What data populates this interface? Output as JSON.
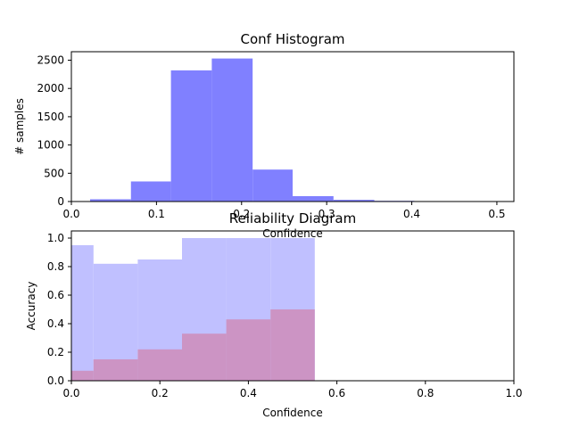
{
  "chart_data": [
    {
      "type": "bar",
      "title": "Conf Histogram",
      "xlabel": "Confidence",
      "ylabel": "# samples",
      "xlim": [
        0.0,
        0.52
      ],
      "ylim": [
        0,
        2650
      ],
      "xticks": [
        "0.0",
        "0.1",
        "0.2",
        "0.3",
        "0.4",
        "0.5"
      ],
      "yticks": [
        "0",
        "500",
        "1000",
        "1500",
        "2000",
        "2500"
      ],
      "bin_edges": [
        0.022,
        0.07,
        0.117,
        0.165,
        0.213,
        0.26,
        0.308,
        0.356,
        0.403,
        0.451,
        0.498
      ],
      "values": [
        40,
        355,
        2320,
        2530,
        565,
        95,
        30,
        12,
        6,
        4
      ],
      "color": "#8080ff",
      "grid": false
    },
    {
      "type": "bar",
      "title": "Reliability Diagram",
      "xlabel": "Confidence",
      "ylabel": "Accuracy",
      "xlim": [
        0.0,
        1.0
      ],
      "ylim": [
        0.0,
        1.05
      ],
      "xticks": [
        "0.0",
        "0.2",
        "0.4",
        "0.6",
        "0.8",
        "1.0"
      ],
      "yticks": [
        "0.0",
        "0.2",
        "0.4",
        "0.6",
        "0.8",
        "1.0"
      ],
      "bin_edges": [
        0.0,
        0.05,
        0.15,
        0.25,
        0.35,
        0.45,
        0.55
      ],
      "series": [
        {
          "values": [
            0.95,
            0.82,
            0.85,
            1.0,
            1.0,
            1.0
          ],
          "color": "#c0c0ff"
        },
        {
          "values": [
            0.07,
            0.15,
            0.22,
            0.33,
            0.43,
            0.5
          ],
          "color": "#cc94c4"
        }
      ],
      "grid": false
    }
  ]
}
